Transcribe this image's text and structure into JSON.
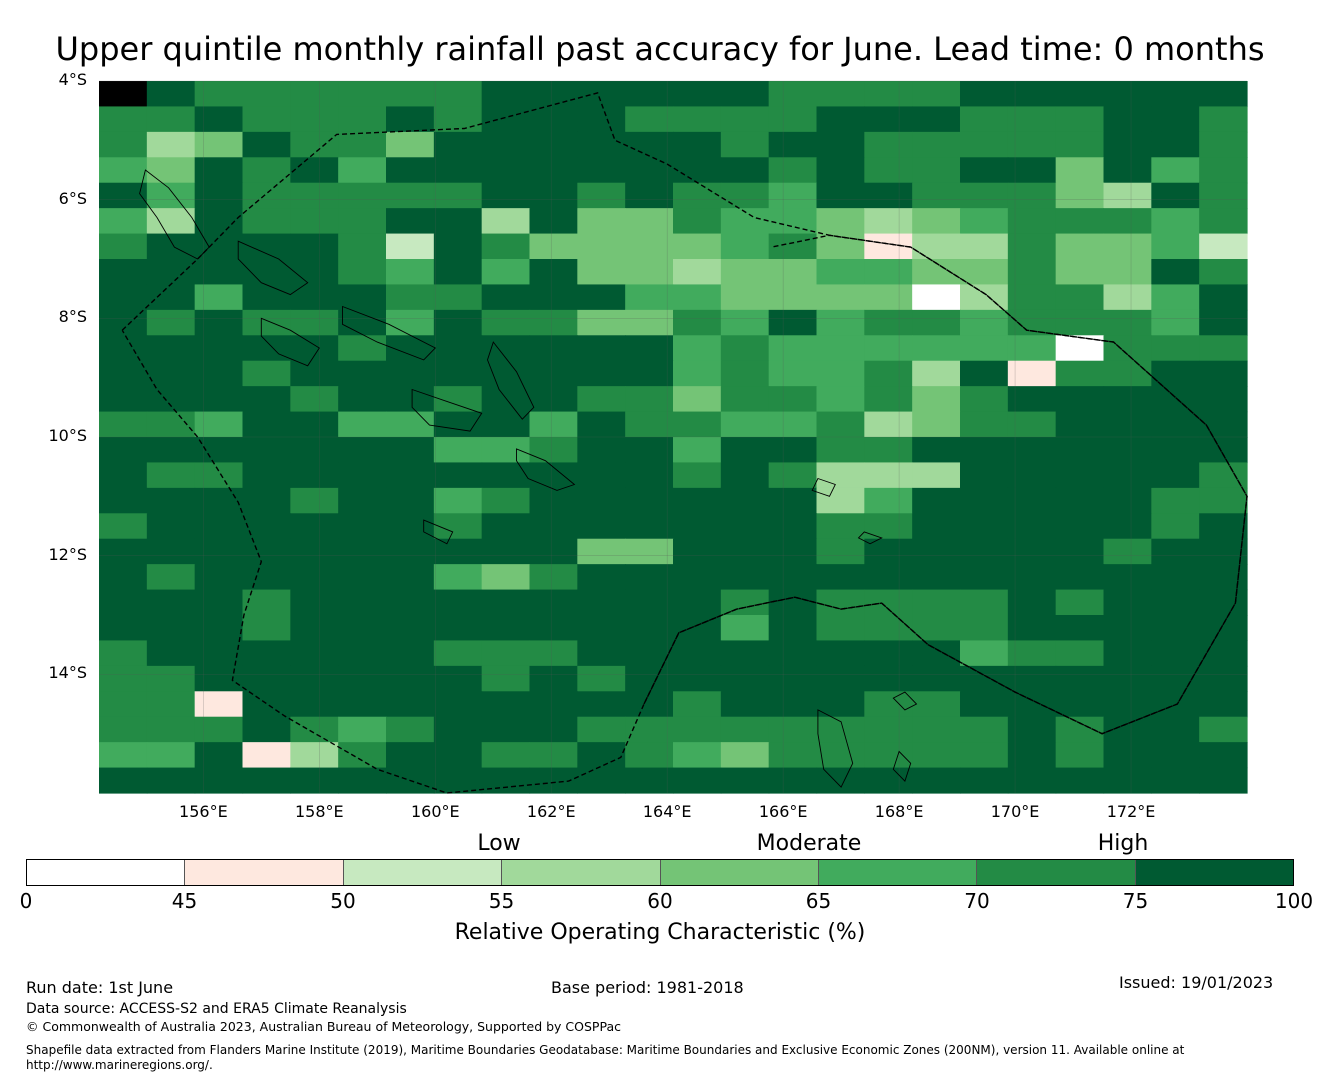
{
  "title": "Upper quintile monthly rainfall past accuracy for June. Lead time: 0 months",
  "map": {
    "lon_range": [
      154.2,
      174.0
    ],
    "lat_range": [
      -16.0,
      -4.0
    ],
    "latitude_labels": [
      {
        "value": -4,
        "label": "4°S"
      },
      {
        "value": -6,
        "label": "6°S"
      },
      {
        "value": -8,
        "label": "8°S"
      },
      {
        "value": -10,
        "label": "10°S"
      },
      {
        "value": -12,
        "label": "12°S"
      },
      {
        "value": -14,
        "label": "14°S"
      }
    ],
    "longitude_labels": [
      {
        "value": 156,
        "label": "156°E"
      },
      {
        "value": 158,
        "label": "158°E"
      },
      {
        "value": 160,
        "label": "160°E"
      },
      {
        "value": 162,
        "label": "162°E"
      },
      {
        "value": 164,
        "label": "164°E"
      },
      {
        "value": 166,
        "label": "166°E"
      },
      {
        "value": 168,
        "label": "168°E"
      },
      {
        "value": 170,
        "label": "170°E"
      },
      {
        "value": 172,
        "label": "172°E"
      }
    ],
    "grid": {
      "lon_start": 154.2,
      "lon_step": 0.833,
      "lat_start": -4.0,
      "lat_step": -0.55,
      "columns": 24,
      "class_rows": [
        "876666667777776666777777",
        "667666767776666777666776",
        "634766477777767766666776",
        "547675777777776766774756",
        "757666667767665776664376",
        "537666773744655434566656",
        "677776276444456413364452",
        "777776575744344554464476",
        "775777667775544440366357",
        "767667576644657566566657",
        "777776777777565555550666",
        "777677777777565563716677",
        "777767767766466564677777",
        "665775577576655634667777",
        "777777755677577667777777",
        "766777777777676333777776",
        "777767756777777357777766",
        "677777767777777667777767",
        "777777777744777677777677",
        "767777754677777777777777",
        "777677777777767666676777",
        "777677777777757666677777",
        "677777766677777777566777",
        "667777776767777777777777",
        "661777777777677766777777",
        "666765677766666666676776",
        "557136776676546666676777",
        "777777777777777777777777"
      ]
    },
    "boundaries": {
      "solomon": [
        [
          154.6,
          -8.2
        ],
        [
          155.9,
          -7.0
        ],
        [
          156.6,
          -6.3
        ],
        [
          158.3,
          -4.9
        ],
        [
          160.5,
          -4.8
        ],
        [
          162.8,
          -4.2
        ],
        [
          163.1,
          -5.0
        ],
        [
          164.0,
          -5.4
        ],
        [
          165.5,
          -6.3
        ],
        [
          166.8,
          -6.6
        ],
        [
          168.2,
          -6.8
        ],
        [
          169.5,
          -7.6
        ],
        [
          170.2,
          -8.2
        ],
        [
          171.7,
          -8.4
        ],
        [
          173.3,
          -9.8
        ],
        [
          174.0,
          -11.0
        ],
        [
          173.8,
          -12.8
        ],
        [
          172.8,
          -14.5
        ],
        [
          171.5,
          -15.0
        ],
        [
          170.0,
          -14.3
        ],
        [
          168.5,
          -13.5
        ],
        [
          167.7,
          -12.8
        ],
        [
          167.0,
          -12.9
        ],
        [
          166.2,
          -12.7
        ],
        [
          165.2,
          -12.9
        ],
        [
          164.2,
          -13.3
        ],
        [
          163.6,
          -14.5
        ],
        [
          163.2,
          -15.4
        ],
        [
          162.3,
          -15.8
        ],
        [
          160.2,
          -16.0
        ],
        [
          159.0,
          -15.6
        ],
        [
          157.4,
          -14.7
        ],
        [
          156.5,
          -14.1
        ],
        [
          156.7,
          -13.0
        ],
        [
          157.0,
          -12.1
        ],
        [
          156.6,
          -11.1
        ],
        [
          155.9,
          -10.0
        ],
        [
          155.2,
          -9.2
        ],
        [
          154.6,
          -8.2
        ]
      ],
      "vanuatu_north": [
        [
          163.6,
          -14.5
        ],
        [
          164.2,
          -13.3
        ],
        [
          165.2,
          -12.9
        ],
        [
          166.2,
          -12.7
        ],
        [
          167.0,
          -12.9
        ],
        [
          167.7,
          -12.8
        ],
        [
          168.5,
          -13.5
        ],
        [
          170.0,
          -14.3
        ],
        [
          171.5,
          -15.0
        ],
        [
          172.8,
          -14.5
        ],
        [
          173.8,
          -12.8
        ],
        [
          174.0,
          -11.0
        ],
        [
          173.3,
          -9.8
        ],
        [
          171.7,
          -8.4
        ],
        [
          170.2,
          -8.2
        ],
        [
          169.5,
          -7.6
        ],
        [
          168.2,
          -6.8
        ],
        [
          166.8,
          -6.6
        ],
        [
          165.8,
          -6.8
        ]
      ]
    },
    "islands": [
      [
        [
          155.0,
          -5.5
        ],
        [
          155.4,
          -5.8
        ],
        [
          155.8,
          -6.3
        ],
        [
          156.1,
          -6.8
        ],
        [
          155.9,
          -7.0
        ],
        [
          155.5,
          -6.8
        ],
        [
          155.2,
          -6.3
        ],
        [
          154.9,
          -5.9
        ],
        [
          155.0,
          -5.5
        ]
      ],
      [
        [
          156.6,
          -6.7
        ],
        [
          157.3,
          -7.0
        ],
        [
          157.8,
          -7.4
        ],
        [
          157.5,
          -7.6
        ],
        [
          157.0,
          -7.4
        ],
        [
          156.6,
          -7.0
        ],
        [
          156.6,
          -6.7
        ]
      ],
      [
        [
          157.0,
          -8.0
        ],
        [
          157.5,
          -8.2
        ],
        [
          158.0,
          -8.5
        ],
        [
          157.8,
          -8.8
        ],
        [
          157.3,
          -8.6
        ],
        [
          157.0,
          -8.3
        ],
        [
          157.0,
          -8.0
        ]
      ],
      [
        [
          158.4,
          -7.8
        ],
        [
          159.2,
          -8.1
        ],
        [
          160.0,
          -8.5
        ],
        [
          159.8,
          -8.7
        ],
        [
          159.0,
          -8.4
        ],
        [
          158.4,
          -8.1
        ],
        [
          158.4,
          -7.8
        ]
      ],
      [
        [
          159.6,
          -9.2
        ],
        [
          160.2,
          -9.4
        ],
        [
          160.8,
          -9.6
        ],
        [
          160.6,
          -9.9
        ],
        [
          159.9,
          -9.8
        ],
        [
          159.6,
          -9.5
        ],
        [
          159.6,
          -9.2
        ]
      ],
      [
        [
          161.0,
          -8.4
        ],
        [
          161.4,
          -8.9
        ],
        [
          161.7,
          -9.5
        ],
        [
          161.5,
          -9.7
        ],
        [
          161.1,
          -9.2
        ],
        [
          160.9,
          -8.7
        ],
        [
          161.0,
          -8.4
        ]
      ],
      [
        [
          161.4,
          -10.2
        ],
        [
          161.9,
          -10.4
        ],
        [
          162.4,
          -10.8
        ],
        [
          162.1,
          -10.9
        ],
        [
          161.6,
          -10.7
        ],
        [
          161.4,
          -10.4
        ],
        [
          161.4,
          -10.2
        ]
      ],
      [
        [
          159.8,
          -11.4
        ],
        [
          160.3,
          -11.6
        ],
        [
          160.2,
          -11.8
        ],
        [
          159.8,
          -11.6
        ],
        [
          159.8,
          -11.4
        ]
      ],
      [
        [
          166.6,
          -14.6
        ],
        [
          167.0,
          -14.8
        ],
        [
          167.2,
          -15.5
        ],
        [
          167.0,
          -15.9
        ],
        [
          166.7,
          -15.6
        ],
        [
          166.6,
          -15.0
        ],
        [
          166.6,
          -14.6
        ]
      ],
      [
        [
          168.0,
          -15.3
        ],
        [
          168.2,
          -15.5
        ],
        [
          168.1,
          -15.8
        ],
        [
          167.9,
          -15.6
        ],
        [
          168.0,
          -15.3
        ]
      ],
      [
        [
          168.1,
          -14.3
        ],
        [
          168.3,
          -14.5
        ],
        [
          168.1,
          -14.6
        ],
        [
          167.9,
          -14.4
        ],
        [
          168.1,
          -14.3
        ]
      ],
      [
        [
          166.6,
          -10.7
        ],
        [
          166.9,
          -10.8
        ],
        [
          166.8,
          -11.0
        ],
        [
          166.5,
          -10.9
        ],
        [
          166.6,
          -10.7
        ]
      ],
      [
        [
          167.4,
          -11.6
        ],
        [
          167.7,
          -11.7
        ],
        [
          167.5,
          -11.8
        ],
        [
          167.3,
          -11.7
        ],
        [
          167.4,
          -11.6
        ]
      ]
    ]
  },
  "colorbar": {
    "category_labels": {
      "low": "Low",
      "moderate": "Moderate",
      "high": "High"
    },
    "ticks": [
      "0",
      "45",
      "50",
      "55",
      "60",
      "65",
      "70",
      "75",
      "100"
    ],
    "colors": [
      "#ffffff",
      "#fee8df",
      "#c7e9c0",
      "#a1d99b",
      "#74c476",
      "#41ab5d",
      "#238b45",
      "#005a32"
    ],
    "title": "Relative Operating Characteristic (%)"
  },
  "footer": {
    "run_date": "Run date: 1st June",
    "base_period": "Base period: 1981-2018",
    "issued": "Issued: 19/01/2023",
    "data_source": "Data source: ACCESS-S2 and ERA5 Climate Reanalysis",
    "copyright": "© Commonwealth of Australia 2023, Australian Bureau of Meteorology, Supported by COSPPac",
    "shapefile_line1": "Shapefile data extracted from Flanders Marine Institute (2019), Maritime Boundaries Geodatabase: Maritime Boundaries and Exclusive Economic Zones (200NM), version 11. Available online at",
    "shapefile_line2": "http://www.marineregions.org/."
  }
}
